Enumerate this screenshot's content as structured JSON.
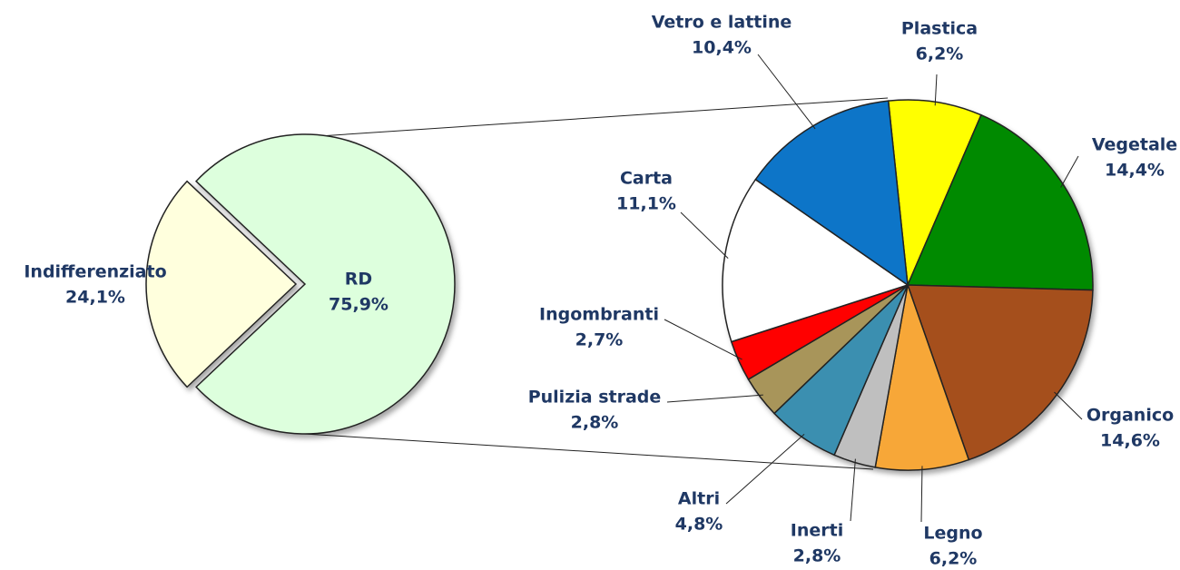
{
  "chart_data": [
    {
      "type": "pie",
      "categories": [
        "Indifferenziato",
        "RD"
      ],
      "values": [
        24.1,
        75.9
      ],
      "value_labels": [
        "24,1%",
        "75,9%"
      ],
      "colors": [
        "#ffffdd",
        "#ddffdd"
      ]
    },
    {
      "type": "pie",
      "categories": [
        "Plastica",
        "Vegetale",
        "Organico",
        "Legno",
        "Inerti",
        "Altri",
        "Pulizia strade",
        "Ingombranti",
        "Carta",
        "Vetro e lattine"
      ],
      "values": [
        6.2,
        14.4,
        14.6,
        6.2,
        2.8,
        4.8,
        2.8,
        2.7,
        11.1,
        10.4
      ],
      "value_labels": [
        "6,2%",
        "14,4%",
        "14,6%",
        "6,2%",
        "2,8%",
        "4,8%",
        "2,8%",
        "2,7%",
        "11,1%",
        "10,4%"
      ],
      "colors": [
        "#ffff00",
        "#008a00",
        "#a5501f",
        "#f7a738",
        "#bfbfbf",
        "#3a8fb0",
        "#a8955a",
        "#ff0000",
        "#ffffff",
        "#0a74c8"
      ]
    }
  ]
}
